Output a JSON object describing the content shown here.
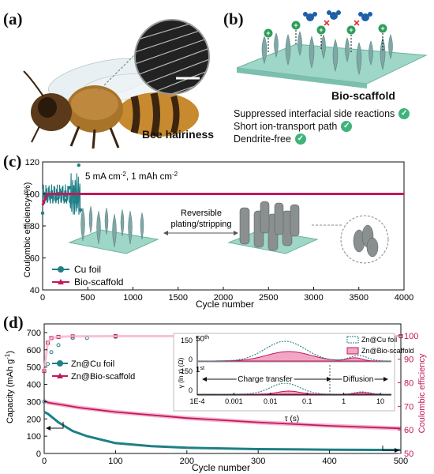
{
  "panel_labels": {
    "a": "(a)",
    "b": "(b)",
    "c": "(c)",
    "d": "(d)"
  },
  "panel_a": {
    "caption": "Bee hairiness"
  },
  "panel_b": {
    "title": "Bio-scaffold",
    "benefits": [
      "Suppressed interfacial side reactions",
      "Short ion-transport path",
      "Dendrite-free"
    ],
    "check_icon": "check-circle-icon",
    "ion_symbol": "+"
  },
  "colors": {
    "teal": "#1f7f86",
    "magenta": "#c2185b",
    "pink_fill": "#f3a6c4",
    "green": "#3fb37a"
  },
  "chart_data": [
    {
      "type": "line",
      "panel": "c",
      "ylabel": "Coulombic efficiency (%)",
      "xlabel": "Cycle number",
      "annotation": "5 mA cm-2, 1 mAh cm-2",
      "annotation_parts": {
        "a": "5 mA cm",
        "sup1": "-2",
        "b": ", 1 mAh cm",
        "sup2": "-2"
      },
      "inset_text": [
        "Reversible",
        "plating/stripping"
      ],
      "x_ticks": [
        "0",
        "500",
        "1000",
        "1500",
        "2000",
        "2500",
        "3000",
        "3500",
        "4000"
      ],
      "y_ticks": [
        "40",
        "60",
        "80",
        "100",
        "120"
      ],
      "xlim": [
        0,
        4000
      ],
      "ylim": [
        40,
        120
      ],
      "series": [
        {
          "name": "Cu foil",
          "x": [
            0,
            30,
            60,
            100,
            150,
            200,
            250,
            300,
            350,
            400,
            420
          ],
          "y": [
            88,
            97,
            99,
            98,
            97,
            101,
            96,
            104,
            95,
            118,
            90
          ]
        },
        {
          "name": "Bio-scaffold",
          "x": [
            0,
            50,
            500,
            1000,
            2000,
            3000,
            4000
          ],
          "y": [
            93,
            100,
            100,
            100,
            100,
            100,
            100
          ]
        }
      ]
    },
    {
      "type": "line",
      "panel": "d",
      "ylabel": "Capacity (mAh g-1)",
      "ylabel_parts": {
        "a": "Capacity (mAh g",
        "sup": "-1",
        "b": ")"
      },
      "ylabel_right": "Coulombic efficiency",
      "xlabel": "Cycle number",
      "x_ticks": [
        "0",
        "100",
        "200",
        "300",
        "400",
        "500"
      ],
      "y_ticks": [
        "0",
        "100",
        "200",
        "300",
        "400",
        "500",
        "600",
        "700"
      ],
      "y2_ticks": [
        "50",
        "60",
        "70",
        "80",
        "90",
        "100"
      ],
      "xlim": [
        0,
        500
      ],
      "ylim": [
        0,
        750
      ],
      "y2lim": [
        50,
        105
      ],
      "series": [
        {
          "name": "Zn@Cu foil",
          "axis": "left",
          "x": [
            0,
            5,
            20,
            40,
            60,
            100,
            150,
            200,
            300,
            400,
            500
          ],
          "y": [
            240,
            230,
            180,
            130,
            100,
            60,
            42,
            33,
            25,
            22,
            20
          ]
        },
        {
          "name": "Zn@Bio-scaffold",
          "axis": "left",
          "x": [
            0,
            5,
            50,
            100,
            200,
            300,
            400,
            500
          ],
          "y": [
            305,
            295,
            265,
            240,
            205,
            180,
            160,
            145
          ]
        },
        {
          "name": "Zn@Cu foil CE",
          "axis": "right",
          "x": [
            0,
            5,
            10,
            20,
            40,
            60,
            100,
            200,
            300,
            400,
            500
          ],
          "y": [
            72,
            88,
            93,
            96,
            99,
            99,
            99.5,
            99.5,
            99.5,
            99.6,
            99.6
          ]
        },
        {
          "name": "Zn@Bio-scaffold CE",
          "axis": "right",
          "x": [
            0,
            5,
            10,
            20,
            40,
            100,
            200,
            300,
            400,
            500
          ],
          "y": [
            85,
            97,
            99,
            99.5,
            99.7,
            99.8,
            99.8,
            99.8,
            99.8,
            99.8
          ]
        }
      ],
      "inset": {
        "ylabel": "γ (ln τ) (Ω)",
        "xlabel": "τ (s)",
        "x_ticks": [
          "1E-4",
          "0.001",
          "0.01",
          "0.1",
          "1",
          "10"
        ],
        "top_label": "50th",
        "top_label_parts": {
          "a": "50",
          "sup": "th"
        },
        "bottom_label": "1st",
        "bottom_label_parts": {
          "a": "1",
          "sup": "st"
        },
        "y_ticks_top": [
          "0",
          "150"
        ],
        "y_ticks_bottom": [
          "0",
          "150"
        ],
        "legend": [
          "Zn@Cu foil",
          "Zn@Bio-scaffold"
        ],
        "region_labels": [
          "Charge transfer",
          "Diffusion"
        ]
      }
    }
  ]
}
